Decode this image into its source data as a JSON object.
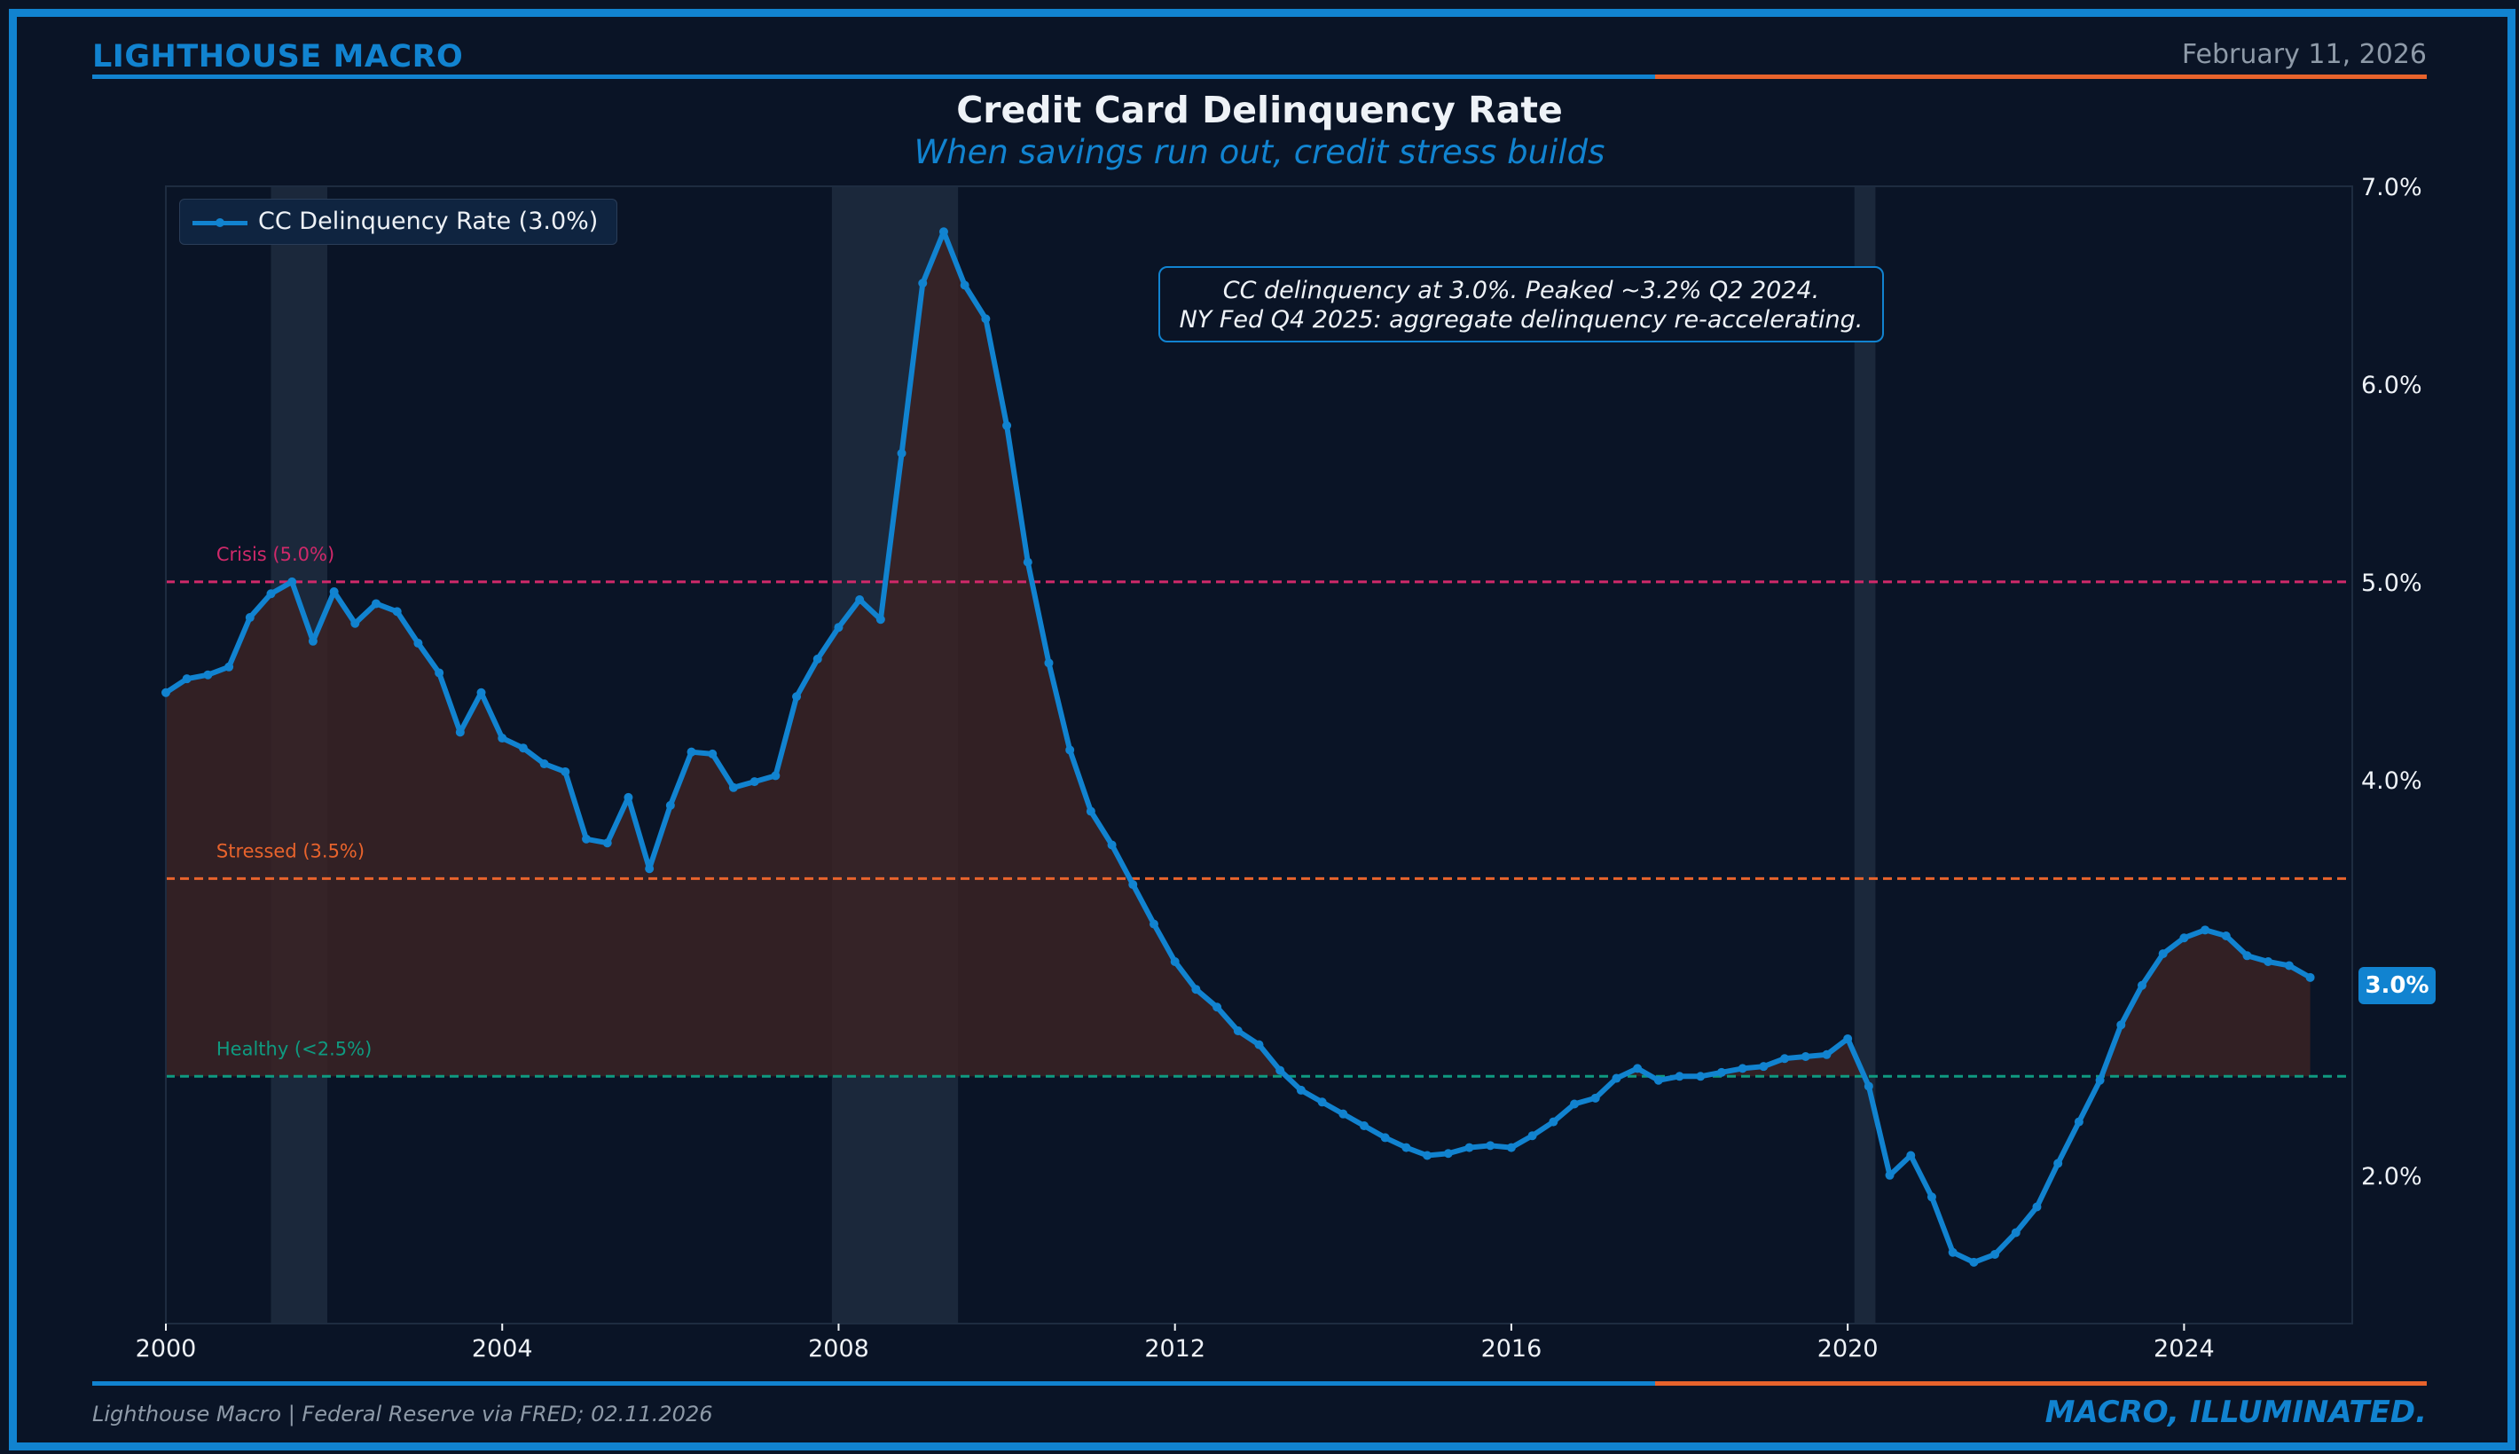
{
  "header": {
    "brand": "LIGHTHOUSE MACRO",
    "date": "February 11, 2026"
  },
  "footer": {
    "source": "Lighthouse Macro | Federal Reserve via FRED; 02.11.2026",
    "tagline": "MACRO, ILLUMINATED."
  },
  "colors": {
    "background": "#0a1426",
    "accent_blue": "#1183d0",
    "accent_orange": "#e8632c",
    "crisis": "#d0296a",
    "stressed": "#e8632c",
    "healthy": "#0f9a80",
    "recession_shade": "#1e2c40",
    "fill": "#3a2224"
  },
  "chart_data": {
    "type": "line",
    "title": "Credit Card Delinquency Rate",
    "subtitle": "When savings run out, credit stress builds",
    "legend": {
      "label": "CC Delinquency Rate (3.0%)",
      "location": "top-left"
    },
    "annotation": {
      "line1": "CC delinquency at 3.0%. Peaked ~3.2% Q2 2024.",
      "line2": "NY Fed Q4 2025: aggregate delinquency re-accelerating."
    },
    "last_value_label": "3.0%",
    "xlim": [
      2000,
      2026
    ],
    "ylim": [
      1.25,
      7.0
    ],
    "x_ticks": [
      2000,
      2004,
      2008,
      2012,
      2016,
      2020,
      2024
    ],
    "x_tick_labels": [
      "2000",
      "2004",
      "2008",
      "2012",
      "2016",
      "2020",
      "2024"
    ],
    "y_ticks": [
      2.0,
      4.0,
      5.0,
      6.0,
      7.0
    ],
    "y_tick_labels": [
      "2.0%",
      "4.0%",
      "5.0%",
      "6.0%",
      "7.0%"
    ],
    "yaxis_side": "right",
    "reference_lines": [
      {
        "name": "crisis",
        "value": 5.0,
        "label": "Crisis (5.0%)",
        "color": "#d0296a"
      },
      {
        "name": "stressed",
        "value": 3.5,
        "label": "Stressed (3.5%)",
        "color": "#e8632c"
      },
      {
        "name": "healthy",
        "value": 2.5,
        "label": "Healthy (<2.5%)",
        "color": "#0f9a80"
      }
    ],
    "recessions": [
      {
        "start": 2001.25,
        "end": 2001.92
      },
      {
        "start": 2007.92,
        "end": 2009.42
      },
      {
        "start": 2020.08,
        "end": 2020.33
      }
    ],
    "fill_threshold": 2.5,
    "series": [
      {
        "name": "CC Delinquency Rate",
        "x": [
          2000.0,
          2000.25,
          2000.5,
          2000.75,
          2001.0,
          2001.25,
          2001.5,
          2001.75,
          2002.0,
          2002.25,
          2002.5,
          2002.75,
          2003.0,
          2003.25,
          2003.5,
          2003.75,
          2004.0,
          2004.25,
          2004.5,
          2004.75,
          2005.0,
          2005.25,
          2005.5,
          2005.75,
          2006.0,
          2006.25,
          2006.5,
          2006.75,
          2007.0,
          2007.25,
          2007.5,
          2007.75,
          2008.0,
          2008.25,
          2008.5,
          2008.75,
          2009.0,
          2009.25,
          2009.5,
          2009.75,
          2010.0,
          2010.25,
          2010.5,
          2010.75,
          2011.0,
          2011.25,
          2011.5,
          2011.75,
          2012.0,
          2012.25,
          2012.5,
          2012.75,
          2013.0,
          2013.25,
          2013.5,
          2013.75,
          2014.0,
          2014.25,
          2014.5,
          2014.75,
          2015.0,
          2015.25,
          2015.5,
          2015.75,
          2016.0,
          2016.25,
          2016.5,
          2016.75,
          2017.0,
          2017.25,
          2017.5,
          2017.75,
          2018.0,
          2018.25,
          2018.5,
          2018.75,
          2019.0,
          2019.25,
          2019.5,
          2019.75,
          2020.0,
          2020.25,
          2020.5,
          2020.75,
          2021.0,
          2021.25,
          2021.5,
          2021.75,
          2022.0,
          2022.25,
          2022.5,
          2022.75,
          2023.0,
          2023.25,
          2023.5,
          2023.75,
          2024.0,
          2024.25,
          2024.5,
          2024.75,
          2025.0,
          2025.25,
          2025.5
        ],
        "values": [
          4.44,
          4.51,
          4.53,
          4.57,
          4.82,
          4.94,
          5.0,
          4.7,
          4.95,
          4.79,
          4.89,
          4.85,
          4.69,
          4.54,
          4.24,
          4.44,
          4.21,
          4.16,
          4.08,
          4.04,
          3.7,
          3.68,
          3.91,
          3.55,
          3.87,
          4.14,
          4.13,
          3.96,
          3.99,
          4.02,
          4.42,
          4.61,
          4.77,
          4.91,
          4.81,
          5.65,
          6.51,
          6.77,
          6.5,
          6.33,
          5.79,
          5.1,
          4.59,
          4.15,
          3.84,
          3.67,
          3.47,
          3.27,
          3.08,
          2.94,
          2.85,
          2.73,
          2.66,
          2.53,
          2.43,
          2.37,
          2.31,
          2.25,
          2.19,
          2.14,
          2.1,
          2.11,
          2.14,
          2.15,
          2.14,
          2.2,
          2.27,
          2.36,
          2.39,
          2.49,
          2.54,
          2.48,
          2.5,
          2.5,
          2.52,
          2.54,
          2.55,
          2.59,
          2.6,
          2.61,
          2.69,
          2.45,
          2.0,
          2.1,
          1.89,
          1.61,
          1.56,
          1.6,
          1.71,
          1.84,
          2.06,
          2.27,
          2.48,
          2.76,
          2.96,
          3.12,
          3.2,
          3.24,
          3.21,
          3.11,
          3.08,
          3.06,
          3.0
        ]
      }
    ]
  }
}
